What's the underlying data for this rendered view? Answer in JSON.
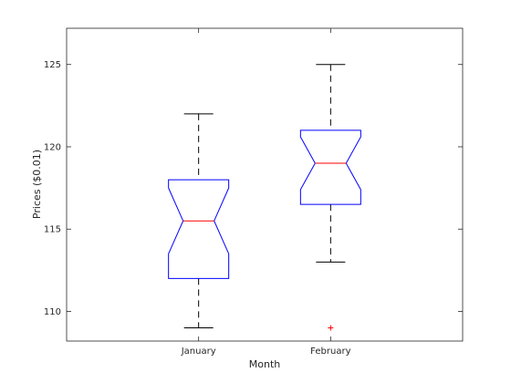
{
  "chart_data": {
    "type": "boxplot",
    "title": "",
    "xlabel": "Month",
    "ylabel": "Prices ($0.01)",
    "ylim": [
      108.2,
      127.2
    ],
    "yticks": [
      110,
      115,
      120,
      125
    ],
    "grid": false,
    "notched": true,
    "colors": {
      "box": "#0000ff",
      "median": "#ff0000",
      "whisker": "#000000",
      "outlier": "#ff0000",
      "axes": "#262626"
    },
    "categories": [
      "January",
      "February"
    ],
    "boxes": [
      {
        "category": "January",
        "whisker_low": 109,
        "q1": 112,
        "notch_low": 113.5,
        "median": 115.5,
        "notch_high": 117.5,
        "q3": 118,
        "whisker_high": 122,
        "outliers": []
      },
      {
        "category": "February",
        "whisker_low": 113,
        "q1": 116.5,
        "notch_low": 117.4,
        "median": 119,
        "notch_high": 120.6,
        "q3": 121,
        "whisker_high": 125,
        "outliers": [
          109
        ]
      }
    ]
  }
}
